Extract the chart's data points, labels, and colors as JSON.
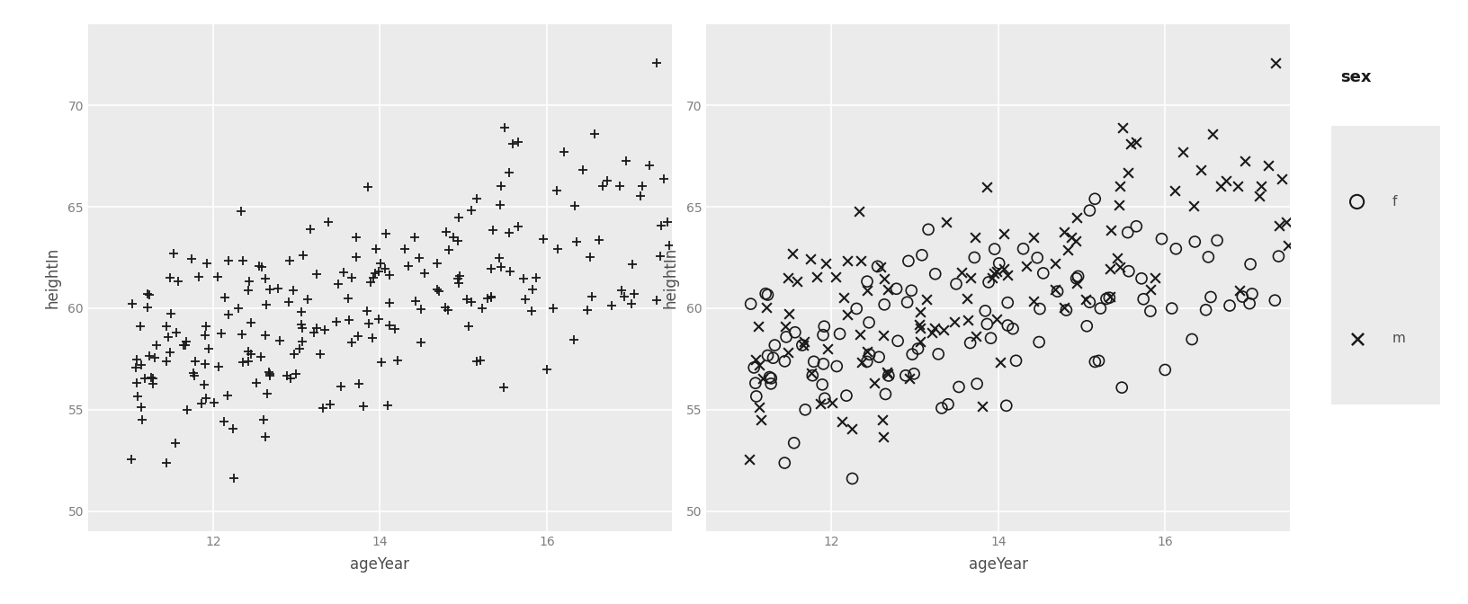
{
  "bg_color": "#EBEBEB",
  "outer_bg": "#FFFFFF",
  "grid_color": "#FFFFFF",
  "axis_label_color": "#4D4D4D",
  "tick_label_color": "#7F7F7F",
  "title_color": "#1A1A1A",
  "legend_title_color": "#1A1A1A",
  "xlabel": "ageYear",
  "ylabel": "heightIn",
  "xlim": [
    10.5,
    17.5
  ],
  "ylim": [
    49,
    74
  ],
  "xticks": [
    12,
    14,
    16
  ],
  "yticks": [
    50,
    55,
    60,
    65,
    70
  ],
  "legend_title": "sex",
  "legend_labels": [
    "f",
    "m"
  ],
  "marker_color": "#1A1A1A",
  "seed": 42
}
